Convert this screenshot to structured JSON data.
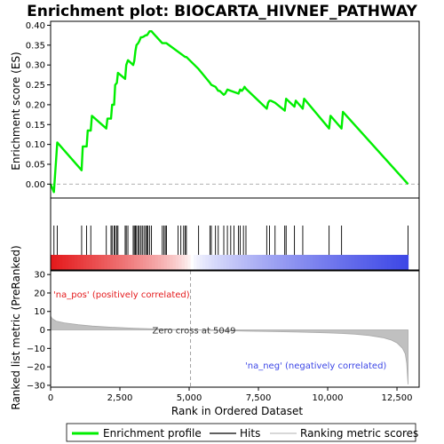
{
  "chart_data": {
    "type": "line",
    "title": "Enrichment plot: BIOCARTA_HIVNEF_PATHWAY",
    "top_panel": {
      "ylabel": "Enrichment score (ES)",
      "ylim": [
        -0.035,
        0.41
      ],
      "yticks": [
        "0.00",
        "0.05",
        "0.10",
        "0.15",
        "0.20",
        "0.25",
        "0.30",
        "0.35",
        "0.40"
      ],
      "ytick_values": [
        0,
        0.05,
        0.1,
        0.15,
        0.2,
        0.25,
        0.3,
        0.35,
        0.4
      ],
      "series": [
        {
          "name": "Enrichment profile",
          "color": "#00ee00",
          "x": [
            0,
            120,
            240,
            1120,
            1160,
            1300,
            1340,
            1450,
            1490,
            2010,
            2050,
            2180,
            2220,
            2290,
            2330,
            2390,
            2430,
            2690,
            2730,
            2790,
            2980,
            3020,
            3060,
            3100,
            3160,
            3200,
            3260,
            3310,
            3370,
            3430,
            3470,
            3510,
            3570,
            3640,
            3700,
            4030,
            4090,
            4140,
            4180,
            4860,
            4900,
            5340,
            5750,
            5800,
            5950,
            6050,
            6100,
            6250,
            6300,
            6380,
            6500,
            6620,
            6780,
            6840,
            6900,
            6960,
            7000,
            7050,
            7800,
            7850,
            7900,
            7950,
            8100,
            8450,
            8500,
            8800,
            8850,
            9100,
            9150,
            10050,
            10100,
            10500,
            10550,
            12900
          ],
          "y": [
            0.0,
            -0.02,
            0.105,
            0.035,
            0.095,
            0.095,
            0.135,
            0.135,
            0.172,
            0.14,
            0.165,
            0.165,
            0.2,
            0.2,
            0.25,
            0.255,
            0.28,
            0.265,
            0.3,
            0.312,
            0.3,
            0.31,
            0.335,
            0.35,
            0.355,
            0.36,
            0.37,
            0.37,
            0.372,
            0.375,
            0.375,
            0.378,
            0.385,
            0.385,
            0.38,
            0.355,
            0.355,
            0.355,
            0.355,
            0.32,
            0.32,
            0.29,
            0.255,
            0.25,
            0.245,
            0.235,
            0.235,
            0.225,
            0.228,
            0.238,
            0.235,
            0.232,
            0.228,
            0.238,
            0.235,
            0.24,
            0.245,
            0.24,
            0.19,
            0.205,
            0.21,
            0.21,
            0.205,
            0.185,
            0.215,
            0.195,
            0.21,
            0.19,
            0.215,
            0.14,
            0.172,
            0.14,
            0.182,
            0.0
          ]
        }
      ]
    },
    "hits": [
      120,
      240,
      1120,
      1300,
      1450,
      2010,
      2180,
      2220,
      2290,
      2330,
      2390,
      2430,
      2690,
      2730,
      2790,
      2980,
      3020,
      3060,
      3100,
      3160,
      3200,
      3260,
      3310,
      3370,
      3430,
      3470,
      3510,
      3570,
      3640,
      4030,
      4090,
      4140,
      4180,
      4600,
      4700,
      4800,
      4860,
      4900,
      5340,
      5750,
      5800,
      5950,
      6050,
      6250,
      6380,
      6500,
      6620,
      6780,
      6840,
      6960,
      7050,
      7800,
      7900,
      8100,
      8450,
      8500,
      8800,
      9100,
      10050,
      10500,
      12900
    ],
    "bottom_panel": {
      "ylabel": "Ranked list metric (PreRanked)",
      "ylim": [
        -31,
        32
      ],
      "yticks": [
        "30",
        "20",
        "10",
        "0",
        "−10",
        "−20",
        "−30"
      ],
      "ytick_values": [
        30,
        20,
        10,
        0,
        -10,
        -20,
        -30
      ],
      "metric_x": [
        0,
        50,
        200,
        500,
        1000,
        1500,
        2000,
        3000,
        4000,
        5049,
        6000,
        7000,
        8000,
        9000,
        10000,
        10500,
        11000,
        11500,
        12000,
        12300,
        12500,
        12700,
        12800,
        12850,
        12900
      ],
      "metric_y": [
        7.5,
        6.2,
        4.8,
        3.8,
        2.8,
        2.1,
        1.6,
        0.9,
        0.4,
        0.0,
        -0.3,
        -0.6,
        -0.9,
        -1.2,
        -1.6,
        -1.9,
        -2.3,
        -3.0,
        -4.2,
        -5.5,
        -7.0,
        -10.0,
        -13.0,
        -18.0,
        -29.5
      ],
      "zero_cross_label": "Zero cross at 5049",
      "zero_cross": 5049,
      "pos_label": "'na_pos' (positively correlated)",
      "neg_label": "'na_neg' (negatively correlated)"
    },
    "xlabel": "Rank in Ordered Dataset",
    "xlim": [
      0,
      13300
    ],
    "xticks": [
      "0",
      "2,500",
      "5,000",
      "7,500",
      "10,000",
      "12,500"
    ],
    "xtick_values": [
      0,
      2500,
      5000,
      7500,
      10000,
      12500
    ],
    "legend": {
      "placement": "bottom",
      "items": [
        {
          "label": "Enrichment profile",
          "color": "#00ee00"
        },
        {
          "label": "Hits",
          "color": "#000000"
        },
        {
          "label": "Ranking metric scores",
          "color": "#c0c0c0"
        }
      ]
    },
    "colors": {
      "pos": "#e41a1c",
      "neg": "#3c46e6",
      "metric_fill": "#c0c0c0"
    }
  }
}
